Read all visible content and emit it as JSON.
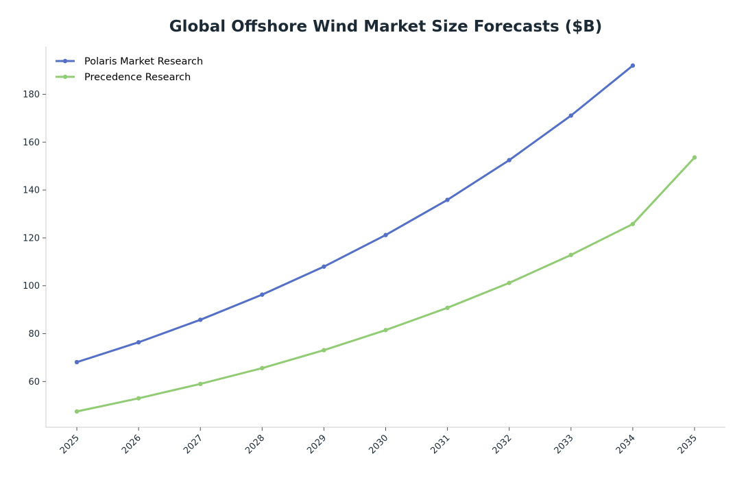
{
  "chart_data": {
    "type": "line",
    "title": "Global Offshore Wind Market Size Forecasts ($B)",
    "xlabel": "",
    "ylabel": "",
    "x": [
      2025,
      2026,
      2027,
      2028,
      2029,
      2030,
      2031,
      2032,
      2033,
      2034,
      2035
    ],
    "x_tick_labels": [
      "2025",
      "2026",
      "2027",
      "2028",
      "2029",
      "2030",
      "2031",
      "2032",
      "2033",
      "2034",
      "2035"
    ],
    "y_ticks": [
      60,
      80,
      100,
      120,
      140,
      160,
      180
    ],
    "y_tick_labels": [
      "60",
      "80",
      "100",
      "120",
      "140",
      "160",
      "180"
    ],
    "ylim": [
      40.9,
      199.9
    ],
    "grid": false,
    "legend_position": "top-left",
    "series": [
      {
        "name": "Polaris Market Research",
        "color": "#5470c6",
        "x": [
          2025,
          2026,
          2027,
          2028,
          2029,
          2030,
          2031,
          2032,
          2033,
          2034
        ],
        "values": [
          68.1,
          76.4,
          85.8,
          96.3,
          108.0,
          121.2,
          135.9,
          152.5,
          171.1,
          192.0
        ]
      },
      {
        "name": "Precedence Research",
        "color": "#91cc75",
        "x": [
          2025,
          2026,
          2027,
          2028,
          2029,
          2030,
          2031,
          2032,
          2033,
          2034,
          2035
        ],
        "values": [
          47.5,
          53.0,
          59.0,
          65.6,
          73.1,
          81.5,
          90.8,
          101.2,
          112.9,
          125.8,
          153.6
        ]
      }
    ]
  }
}
